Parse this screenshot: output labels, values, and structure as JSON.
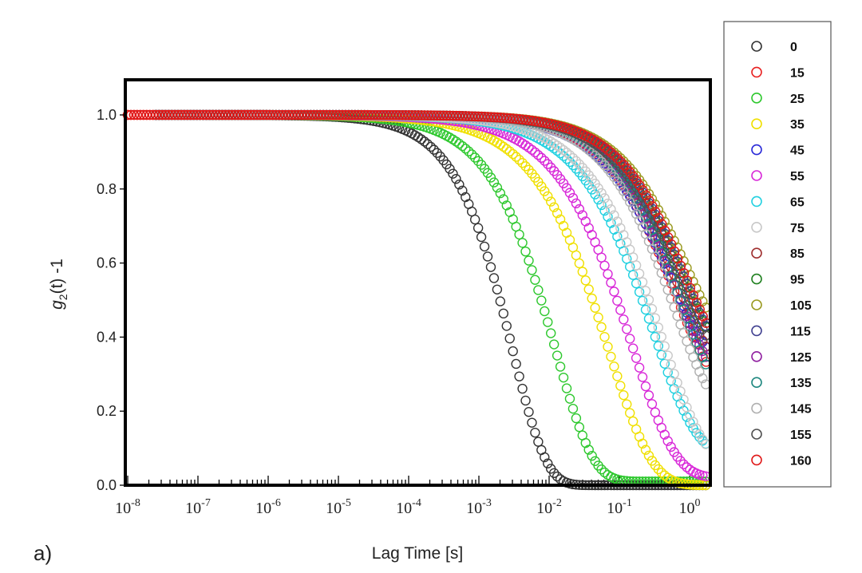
{
  "chart_data": {
    "type": "scatter",
    "title": "",
    "panel_label": "a)",
    "xlabel": "Lag Time [s]",
    "ylabel": "g2(t) -1",
    "ylabel_parts": {
      "g": "g",
      "sub": "2",
      "rest": "(t) -1"
    },
    "xscale": "log",
    "xlim": [
      1e-08,
      2
    ],
    "ylim": [
      0,
      1.1
    ],
    "x_ticks": [
      {
        "base": "10",
        "exp": "-8"
      },
      {
        "base": "10",
        "exp": "-7"
      },
      {
        "base": "10",
        "exp": "-6"
      },
      {
        "base": "10",
        "exp": "-5"
      },
      {
        "base": "10",
        "exp": "-4"
      },
      {
        "base": "10",
        "exp": "-3"
      },
      {
        "base": "10",
        "exp": "-2"
      },
      {
        "base": "10",
        "exp": "-1"
      },
      {
        "base": "10",
        "exp": "0"
      }
    ],
    "y_ticks": [
      "0.0",
      "0.2",
      "0.4",
      "0.6",
      "0.8",
      "1.0"
    ],
    "legend_position": "right",
    "series": [
      {
        "name": "0",
        "color": "#333333",
        "tau": 0.003,
        "plateau": 0.0,
        "beta": 0.9
      },
      {
        "name": "15",
        "color": "#e82020",
        "tau": 0.6,
        "plateau": 0.25,
        "beta": 0.75
      },
      {
        "name": "25",
        "color": "#2ec82e",
        "tau": 0.012,
        "plateau": 0.01,
        "beta": 0.8
      },
      {
        "name": "35",
        "color": "#f0e000",
        "tau": 0.07,
        "plateau": 0.0,
        "beta": 0.7
      },
      {
        "name": "45",
        "color": "#2a2ad8",
        "tau": 0.55,
        "plateau": 0.3,
        "beta": 0.72
      },
      {
        "name": "55",
        "color": "#d828d8",
        "tau": 0.15,
        "plateau": 0.02,
        "beta": 0.7
      },
      {
        "name": "65",
        "color": "#20d0e0",
        "tau": 0.3,
        "plateau": 0.08,
        "beta": 0.7
      },
      {
        "name": "75",
        "color": "#c8c8c8",
        "tau": 0.4,
        "plateau": 0.05,
        "beta": 0.7
      },
      {
        "name": "85",
        "color": "#a03030",
        "tau": 0.7,
        "plateau": 0.27,
        "beta": 0.75
      },
      {
        "name": "95",
        "color": "#208020",
        "tau": 0.75,
        "plateau": 0.32,
        "beta": 0.75
      },
      {
        "name": "105",
        "color": "#9a9a20",
        "tau": 0.9,
        "plateau": 0.35,
        "beta": 0.75
      },
      {
        "name": "115",
        "color": "#404090",
        "tau": 0.85,
        "plateau": 0.3,
        "beta": 0.75
      },
      {
        "name": "125",
        "color": "#9020a0",
        "tau": 0.65,
        "plateau": 0.25,
        "beta": 0.75
      },
      {
        "name": "135",
        "color": "#208880",
        "tau": 0.75,
        "plateau": 0.2,
        "beta": 0.75
      },
      {
        "name": "145",
        "color": "#b0b0b0",
        "tau": 0.6,
        "plateau": 0.18,
        "beta": 0.75
      },
      {
        "name": "155",
        "color": "#505050",
        "tau": 0.8,
        "plateau": 0.28,
        "beta": 0.75
      },
      {
        "name": "160",
        "color": "#e01818",
        "tau": 0.9,
        "plateau": 0.3,
        "beta": 0.75
      }
    ]
  }
}
